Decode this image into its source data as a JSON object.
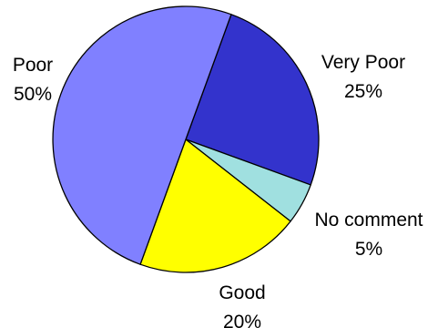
{
  "chart_data": {
    "type": "pie",
    "title": "",
    "slices": [
      {
        "label": "Very Poor",
        "value": 25,
        "percent_label": "25%",
        "color": "#3333cc"
      },
      {
        "label": "No comment",
        "value": 5,
        "percent_label": "5%",
        "color": "#a0e0e0"
      },
      {
        "label": "Good",
        "value": 20,
        "percent_label": "20%",
        "color": "#ffff00"
      },
      {
        "label": "Poor",
        "value": 50,
        "percent_label": "50%",
        "color": "#8080ff"
      }
    ],
    "slice_outline_color": "#000000",
    "legend": "none"
  }
}
